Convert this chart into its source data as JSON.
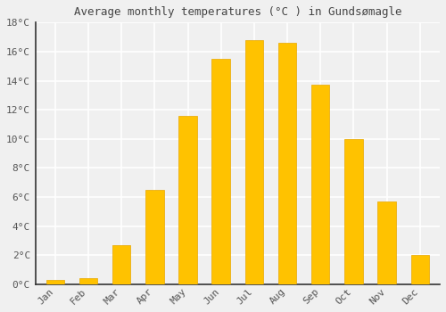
{
  "title": "Average monthly temperatures (°C ) in Gundsømagle",
  "months": [
    "Jan",
    "Feb",
    "Mar",
    "Apr",
    "May",
    "Jun",
    "Jul",
    "Aug",
    "Sep",
    "Oct",
    "Nov",
    "Dec"
  ],
  "values": [
    0.3,
    0.4,
    2.7,
    6.5,
    11.6,
    15.5,
    16.8,
    16.6,
    13.7,
    10.0,
    5.7,
    2.0
  ],
  "bar_color": "#FFC200",
  "bar_edge_color": "#E8A800",
  "ylim": [
    0,
    18
  ],
  "ytick_step": 2,
  "background_color": "#f0f0f0",
  "plot_bg_color": "#f0f0f0",
  "grid_color": "#ffffff",
  "title_fontsize": 9,
  "tick_fontsize": 8,
  "bar_width": 0.55
}
